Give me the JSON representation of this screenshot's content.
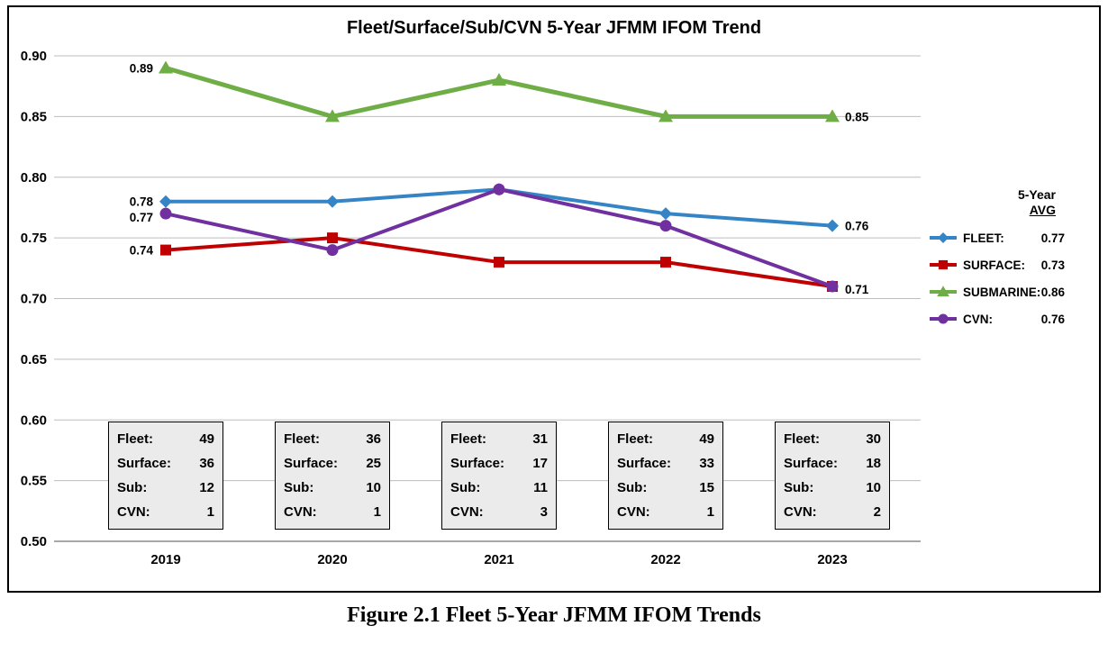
{
  "title": "Fleet/Surface/Sub/CVN 5-Year JFMM IFOM Trend",
  "caption": "Figure 2.1 Fleet 5-Year JFMM IFOM Trends",
  "legend": {
    "header_line1": "5-Year",
    "header_line2": "AVG",
    "entries": [
      {
        "label": "FLEET:",
        "value": "0.77"
      },
      {
        "label": "SURFACE:",
        "value": "0.73"
      },
      {
        "label": "SUBMARINE:",
        "value": "0.86"
      },
      {
        "label": "CVN:",
        "value": "0.76"
      }
    ]
  },
  "chart_data": {
    "type": "line",
    "title": "Fleet/Surface/Sub/CVN 5-Year JFMM IFOM Trend",
    "categories": [
      "2019",
      "2020",
      "2021",
      "2022",
      "2023"
    ],
    "series": [
      {
        "name": "FLEET",
        "color": "#3585C6",
        "marker": "diamond",
        "values": [
          0.78,
          0.78,
          0.79,
          0.77,
          0.76
        ],
        "five_year_avg": 0.77
      },
      {
        "name": "SURFACE",
        "color": "#C00000",
        "marker": "square",
        "values": [
          0.74,
          0.75,
          0.73,
          0.73,
          0.71
        ],
        "five_year_avg": 0.73
      },
      {
        "name": "SUBMARINE",
        "color": "#6FAD46",
        "marker": "triangle",
        "values": [
          0.89,
          0.85,
          0.88,
          0.85,
          0.85
        ],
        "five_year_avg": 0.86
      },
      {
        "name": "CVN",
        "color": "#7030A0",
        "marker": "circle",
        "values": [
          0.77,
          0.74,
          0.79,
          0.76,
          0.71
        ],
        "five_year_avg": 0.76
      }
    ],
    "xlabel": "",
    "ylabel": "",
    "ylim": [
      0.5,
      0.9
    ],
    "ytick_step": 0.05,
    "y_tick_labels": [
      "0.90",
      "0.85",
      "0.80",
      "0.75",
      "0.70",
      "0.65",
      "0.60",
      "0.55",
      "0.50"
    ],
    "grid": true,
    "legend_position": "right",
    "point_labels": [
      {
        "text": "0.89",
        "series": "SUBMARINE",
        "year_index": 0,
        "value": 0.89,
        "side": "left"
      },
      {
        "text": "0.78",
        "series": "FLEET",
        "year_index": 0,
        "value": 0.78,
        "side": "left"
      },
      {
        "text": "0.77",
        "series": "CVN",
        "year_index": 0,
        "value": 0.77,
        "side": "left",
        "dy": 4
      },
      {
        "text": "0.74",
        "series": "SURFACE",
        "year_index": 0,
        "value": 0.74,
        "side": "left"
      },
      {
        "text": "0.85",
        "series": "SUBMARINE",
        "year_index": 4,
        "value": 0.85,
        "side": "right"
      },
      {
        "text": "0.76",
        "series": "FLEET",
        "year_index": 4,
        "value": 0.76,
        "side": "right"
      },
      {
        "text": "0.71",
        "series": "SURFACE",
        "year_index": 4,
        "value": 0.71,
        "side": "right",
        "dy": 3
      }
    ]
  },
  "year_boxes": [
    {
      "year": "2019",
      "rows": [
        {
          "label": "Fleet:",
          "value": "49"
        },
        {
          "label": "Surface:",
          "value": "36"
        },
        {
          "label": "Sub:",
          "value": "12"
        },
        {
          "label": "CVN:",
          "value": "1"
        }
      ]
    },
    {
      "year": "2020",
      "rows": [
        {
          "label": "Fleet:",
          "value": "36"
        },
        {
          "label": "Surface:",
          "value": "25"
        },
        {
          "label": "Sub:",
          "value": "10"
        },
        {
          "label": "CVN:",
          "value": "1"
        }
      ]
    },
    {
      "year": "2021",
      "rows": [
        {
          "label": "Fleet:",
          "value": "31"
        },
        {
          "label": "Surface:",
          "value": "17"
        },
        {
          "label": "Sub:",
          "value": "11"
        },
        {
          "label": "CVN:",
          "value": "3"
        }
      ]
    },
    {
      "year": "2022",
      "rows": [
        {
          "label": "Fleet:",
          "value": "49"
        },
        {
          "label": "Surface:",
          "value": "33"
        },
        {
          "label": "Sub:",
          "value": "15"
        },
        {
          "label": "CVN:",
          "value": "1"
        }
      ]
    },
    {
      "year": "2023",
      "rows": [
        {
          "label": "Fleet:",
          "value": "30"
        },
        {
          "label": "Surface:",
          "value": "18"
        },
        {
          "label": "Sub:",
          "value": "10"
        },
        {
          "label": "CVN:",
          "value": "2"
        }
      ]
    }
  ]
}
